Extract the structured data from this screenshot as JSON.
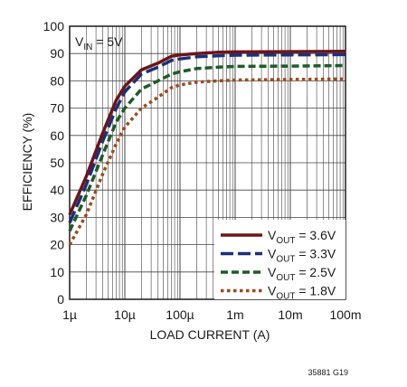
{
  "chart_data": {
    "type": "line",
    "xscale": "log",
    "xlim": [
      1e-06,
      0.1
    ],
    "ylim": [
      0,
      100
    ],
    "grid": true,
    "xlabel": "LOAD CURRENT (A)",
    "ylabel": "EFFICIENCY (%)",
    "x_tick_labels": [
      "1µ",
      "10µ",
      "100µ",
      "1m",
      "10m",
      "100m"
    ],
    "y_tick_labels": [
      "0",
      "10",
      "20",
      "30",
      "40",
      "50",
      "60",
      "70",
      "80",
      "90",
      "100"
    ],
    "annotation": {
      "main": "V",
      "sub": "IN",
      "rest": " = 5V"
    },
    "figure_id": "35881 G19",
    "legend_position": "bottom-right",
    "x": [
      1e-06,
      2e-06,
      4e-06,
      7e-06,
      1e-05,
      2e-05,
      4e-05,
      7e-05,
      0.0001,
      0.0002,
      0.0005,
      0.001,
      0.01,
      0.1
    ],
    "series": [
      {
        "label": {
          "main": "V",
          "sub": "OUT",
          "rest": " = 3.6V"
        },
        "color": "#6b1518",
        "dash": "solid",
        "values": [
          31,
          45,
          61,
          73,
          78,
          84,
          86.5,
          89,
          89.5,
          90,
          90.5,
          90.6,
          90.7,
          90.8
        ]
      },
      {
        "label": {
          "main": "V",
          "sub": "OUT",
          "rest": " = 3.3V"
        },
        "color": "#1c2f78",
        "dash": "long",
        "values": [
          28,
          42,
          58,
          70,
          76,
          82.5,
          85,
          87.5,
          88,
          88.8,
          89.2,
          89.4,
          89.5,
          89.6
        ]
      },
      {
        "label": {
          "main": "V",
          "sub": "OUT",
          "rest": " = 2.5V"
        },
        "color": "#1f5a2a",
        "dash": "medium",
        "values": [
          25,
          38,
          53,
          65,
          70,
          77,
          80,
          82.5,
          83.3,
          84.5,
          85,
          85.3,
          85.4,
          85.6
        ]
      },
      {
        "label": {
          "main": "V",
          "sub": "OUT",
          "rest": " = 1.8V"
        },
        "color": "#9a4a1f",
        "dash": "dotted",
        "values": [
          20,
          31,
          46,
          57,
          63,
          70,
          74,
          77.5,
          78.5,
          79.5,
          80,
          80.3,
          80.5,
          80.7
        ]
      }
    ]
  }
}
